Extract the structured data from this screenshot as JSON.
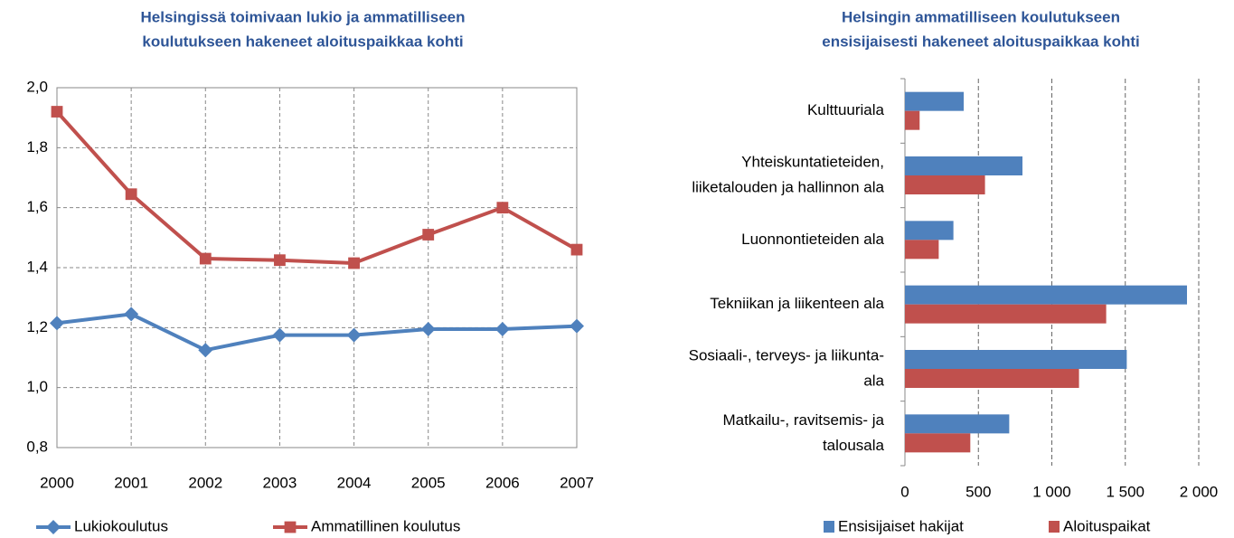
{
  "chart_data": [
    {
      "type": "line",
      "title": [
        "Helsingissä toimivaan lukio ja ammatilliseen",
        "koulutukseen hakeneet aloituspaikkaa kohti"
      ],
      "categories": [
        "2000",
        "2001",
        "2002",
        "2003",
        "2004",
        "2005",
        "2006",
        "2007"
      ],
      "series": [
        {
          "name": "Lukiokoulutus",
          "color": "#4f81bd",
          "marker": "diamond",
          "values": [
            1.215,
            1.245,
            1.125,
            1.175,
            1.175,
            1.195,
            1.195,
            1.205
          ]
        },
        {
          "name": "Ammatillinen koulutus",
          "color": "#c0504d",
          "marker": "square",
          "values": [
            1.92,
            1.645,
            1.43,
            1.425,
            1.415,
            1.51,
            1.6,
            1.46
          ]
        }
      ],
      "ylim": [
        0.8,
        2.0
      ],
      "yticks": [
        {
          "value": 0.8,
          "label": "0,8"
        },
        {
          "value": 1.0,
          "label": "1,0"
        },
        {
          "value": 1.2,
          "label": "1,2"
        },
        {
          "value": 1.4,
          "label": "1,4"
        },
        {
          "value": 1.6,
          "label": "1,6"
        },
        {
          "value": 1.8,
          "label": "1,8"
        },
        {
          "value": 2.0,
          "label": "2,0"
        }
      ],
      "grid": true,
      "legend": "bottom"
    },
    {
      "type": "bar",
      "orientation": "horizontal",
      "title": [
        "Helsingin ammatilliseen koulutukseen",
        "ensisijaisesti hakeneet aloituspaikkaa kohti"
      ],
      "categories": [
        [
          "Kulttuuriala"
        ],
        [
          "Yhteiskuntatieteiden,",
          "liiketalouden ja hallinnon ala"
        ],
        [
          "Luonnontieteiden ala"
        ],
        [
          "Tekniikan ja liikenteen ala"
        ],
        [
          "Sosiaali-, terveys- ja liikunta-",
          "ala"
        ],
        [
          "Matkailu-, ravitsemis- ja",
          "talousala"
        ]
      ],
      "series": [
        {
          "name": "Ensisijaiset hakijat",
          "color": "#4f81bd",
          "values": [
            400,
            800,
            330,
            1920,
            1510,
            710
          ]
        },
        {
          "name": "Aloituspaikat",
          "color": "#c0504d",
          "values": [
            100,
            545,
            230,
            1370,
            1185,
            445
          ]
        }
      ],
      "xlim": [
        0,
        2000
      ],
      "xticks": [
        0,
        500,
        {
          "value": 1000,
          "label": "1 000"
        },
        {
          "value": 1500,
          "label": "1 500"
        },
        {
          "value": 2000,
          "label": "2 000"
        }
      ],
      "grid": true,
      "legend": "bottom"
    }
  ]
}
